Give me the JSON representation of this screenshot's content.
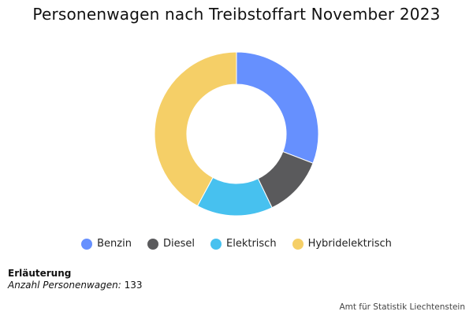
{
  "chart_data": {
    "type": "pie",
    "variant": "donut",
    "title": "Personenwagen nach Treibstoffart November 2023",
    "categories": [
      "Benzin",
      "Diesel",
      "Elektrisch",
      "Hybridelektrisch"
    ],
    "values": [
      41,
      16,
      20,
      56
    ],
    "colors": [
      "#6690fe",
      "#5a5a5c",
      "#47c1ef",
      "#f5cf67"
    ],
    "legend_position": "bottom"
  },
  "notes": {
    "heading": "Erläuterung",
    "label": "Anzahl Personenwagen:",
    "value": "133"
  },
  "credit": "Amt für Statistik Liechtenstein"
}
